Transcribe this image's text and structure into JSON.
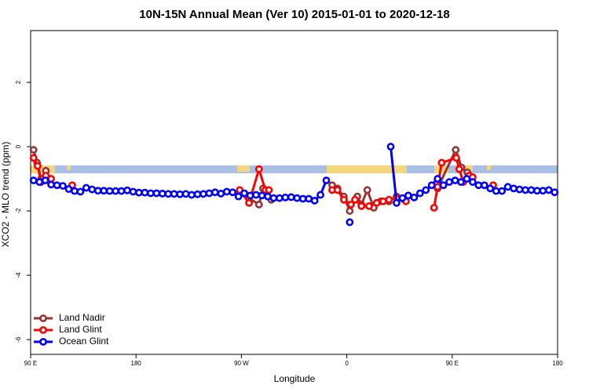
{
  "chart_data": {
    "type": "line",
    "title": "10N-15N Annual Mean (Ver 10)   2015-01-01 to 2020-12-18",
    "xlabel": "Longitude",
    "ylabel": "XCO2 - MLO trend (ppm)",
    "xlim": [
      90,
      540
    ],
    "xticks": [
      {
        "value": 90,
        "label": "90 E"
      },
      180,
      {
        "value": 270,
        "label": "90 W"
      },
      {
        "value": 360,
        "label": "0"
      },
      {
        "value": 450,
        "label": "90 E"
      },
      {
        "value": 540,
        "label": "180"
      }
    ],
    "ylim": [
      -6.46,
      3.61
    ],
    "yticks": [
      -6,
      -4,
      -2,
      0,
      2
    ],
    "legend": "bottom-left",
    "series": [
      {
        "name": "Land Nadir",
        "color": "#993333",
        "x": [
          92.5,
          95.5,
          99,
          103,
          106,
          180,
          268.5,
          276.5,
          285,
          288.5,
          295.5,
          320,
          347.5,
          352,
          357.5,
          362.5,
          369,
          372.5,
          377.5,
          383,
          389,
          396,
          402.5,
          409,
          420,
          437.5,
          453,
          458,
          463,
          466.5
        ],
        "values": [
          -0.1,
          -0.5,
          -1.0,
          -0.75,
          -1.0,
          null,
          -1.4,
          -1.6,
          -1.8,
          -1.3,
          -1.65,
          null,
          -1.2,
          -1.3,
          -1.55,
          -2.0,
          -1.55,
          -1.8,
          -1.35,
          -1.9,
          -1.7,
          -1.7,
          -1.55,
          -1.65,
          null,
          -1.3,
          -0.1,
          -0.65,
          -0.8,
          -1.0
        ]
      },
      {
        "name": "Land Glint",
        "color": "#ff0000",
        "x": [
          92.5,
          96,
          99,
          103,
          107.5,
          115,
          125.5,
          200,
          268.5,
          276.5,
          285,
          290.5,
          293.5,
          320,
          347.5,
          352,
          357.5,
          363.5,
          367,
          372.5,
          379,
          385.5,
          391,
          396,
          402.5,
          410.5,
          420,
          434.5,
          437.5,
          441,
          453.5,
          456,
          459.5,
          464.5,
          467.5,
          475,
          485
        ],
        "values": [
          -0.35,
          -0.6,
          -1.1,
          -0.9,
          -1.0,
          null,
          -1.2,
          null,
          -1.35,
          -1.75,
          -0.7,
          -1.35,
          -1.35,
          null,
          -1.35,
          -1.35,
          -1.65,
          -1.8,
          -1.65,
          -1.85,
          -1.85,
          -1.75,
          -1.7,
          -1.65,
          -1.6,
          -1.7,
          null,
          -1.9,
          -1.25,
          -0.5,
          -0.35,
          -0.7,
          -1.1,
          -0.9,
          -0.95,
          null,
          -1.2
        ]
      },
      {
        "name": "Ocean Glint",
        "color": "#0000ff",
        "x": [
          92.5,
          97.5,
          102.5,
          107.5,
          112.5,
          117.5,
          122.5,
          127.5,
          132.5,
          137.5,
          142.5,
          147.5,
          152.5,
          157.5,
          162.5,
          167.5,
          172.5,
          177.5,
          182.5,
          187.5,
          192.5,
          197.5,
          202.5,
          207.5,
          212.5,
          217.5,
          222.5,
          227.5,
          232.5,
          237.5,
          242.5,
          247.5,
          252.5,
          257.5,
          262.5,
          267.5,
          272.5,
          277.5,
          282.5,
          287.5,
          292.5,
          297.5,
          302.5,
          307.5,
          312.5,
          317.5,
          322.5,
          327.5,
          332.5,
          337.5,
          342.5,
          347.5,
          352.5,
          357.5,
          362.5,
          367.5,
          372.5,
          377.5,
          382.5,
          387.5,
          392.5,
          397.5,
          402.5,
          407.5,
          412.5,
          417.5,
          422.5,
          427.5,
          432.5,
          437.5,
          442.5,
          447.5,
          452.5,
          457.5,
          462.5,
          467.5,
          472.5,
          477.5,
          482.5,
          487.5,
          492.5,
          497.5,
          502.5,
          507.5,
          512.5,
          517.5,
          522.5,
          527.5,
          532.5,
          537.5
        ],
        "values": [
          -1.05,
          -1.1,
          -1.05,
          -1.18,
          -1.2,
          -1.22,
          -1.32,
          -1.38,
          -1.4,
          -1.28,
          -1.33,
          -1.37,
          -1.37,
          -1.38,
          -1.38,
          -1.38,
          -1.36,
          -1.4,
          -1.43,
          -1.43,
          -1.45,
          -1.45,
          -1.46,
          -1.47,
          -1.47,
          -1.48,
          -1.47,
          -1.5,
          -1.48,
          -1.47,
          -1.45,
          -1.42,
          -1.46,
          -1.4,
          -1.42,
          -1.55,
          -1.45,
          -1.52,
          -1.5,
          -1.52,
          -1.55,
          -1.6,
          -1.6,
          -1.58,
          -1.57,
          -1.6,
          -1.62,
          -1.62,
          -1.68,
          -1.5,
          -1.05,
          null,
          null,
          null,
          -2.35,
          null,
          null,
          null,
          null,
          null,
          null,
          0,
          -1.75,
          -1.6,
          -1.52,
          -1.58,
          -1.45,
          -1.35,
          -1.2,
          -1.0,
          -1.2,
          -1.1,
          -1.05,
          -1.1,
          -1.0,
          -1.1,
          -1.2,
          -1.2,
          -1.3,
          -1.38,
          -1.38,
          -1.25,
          -1.3,
          -1.33,
          -1.35,
          -1.35,
          -1.37,
          -1.37,
          -1.35,
          -1.42
        ]
      }
    ]
  }
}
